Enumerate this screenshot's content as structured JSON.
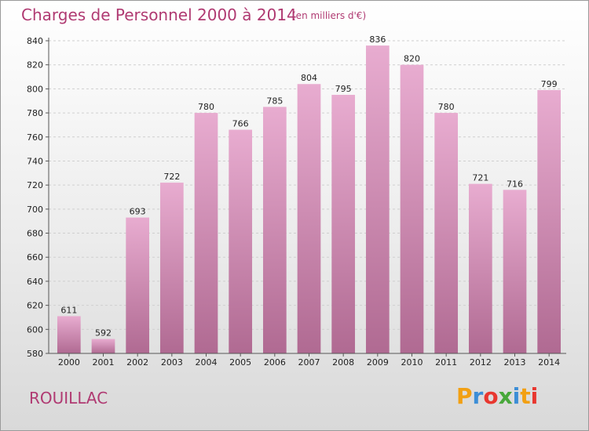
{
  "header": {
    "title": "Charges de Personnel 2000 à 2014",
    "subtitle": "(en milliers d'€)"
  },
  "footer": {
    "town": "ROUILLAC",
    "logo_text": "Proxiti",
    "logo_colors": [
      "#f2a013",
      "#3c8ed6",
      "#e8372f",
      "#48a83b",
      "#3c8ed6",
      "#f2a013",
      "#e8372f"
    ]
  },
  "chart_data": {
    "type": "bar",
    "title": "Charges de Personnel 2000 à 2014",
    "subtitle": "(en milliers d'€)",
    "categories": [
      "2000",
      "2001",
      "2002",
      "2003",
      "2004",
      "2005",
      "2006",
      "2007",
      "2008",
      "2009",
      "2010",
      "2011",
      "2012",
      "2013",
      "2014"
    ],
    "values": [
      611,
      592,
      693,
      722,
      780,
      766,
      785,
      804,
      795,
      836,
      820,
      780,
      721,
      716,
      799
    ],
    "ylim": [
      580,
      840
    ],
    "yticks": [
      580,
      600,
      620,
      640,
      660,
      680,
      700,
      720,
      740,
      760,
      780,
      800,
      820,
      840
    ],
    "grid": true,
    "bar_color_top": "#e8acd0",
    "bar_color_bottom": "#b06a92"
  }
}
